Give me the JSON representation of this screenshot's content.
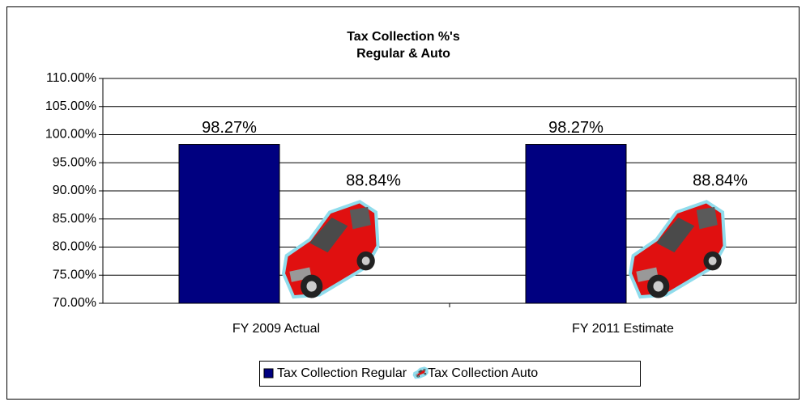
{
  "chart_data": {
    "type": "bar",
    "title": "Tax Collection %'s",
    "subtitle": "Regular & Auto",
    "categories": [
      "FY 2009 Actual",
      "FY 2011 Estimate"
    ],
    "series": [
      {
        "name": "Tax Collection Regular",
        "color": "#000080",
        "values": [
          98.27,
          98.27
        ],
        "value_labels": [
          "98.27%",
          "98.27%"
        ]
      },
      {
        "name": "Tax Collection Auto",
        "color": "#e01010",
        "values": [
          88.84,
          88.84
        ],
        "value_labels": [
          "88.84%",
          "88.84%"
        ]
      }
    ],
    "ylim": [
      70,
      110
    ],
    "yticks": [
      {
        "value": 70,
        "label": "70.00%"
      },
      {
        "value": 75,
        "label": "75.00%"
      },
      {
        "value": 80,
        "label": "80.00%"
      },
      {
        "value": 85,
        "label": "85.00%"
      },
      {
        "value": 90,
        "label": "90.00%"
      },
      {
        "value": 95,
        "label": "95.00%"
      },
      {
        "value": 100,
        "label": "100.00%"
      },
      {
        "value": 105,
        "label": "105.00%"
      },
      {
        "value": 110,
        "label": "110.00%"
      }
    ],
    "grid": true
  }
}
